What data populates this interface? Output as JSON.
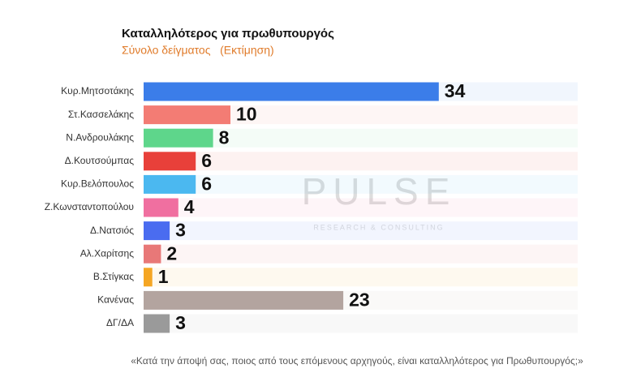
{
  "chart_data": {
    "type": "bar",
    "orientation": "horizontal",
    "title": "Καταλληλότερος για πρωθυπουργός",
    "subtitle": "Σύνολο δείγματος   (Εκτίμηση)",
    "footnote": "«Κατά την άποψή σας, ποιος από τους επόμενους αρχηγούς, είναι καταλληλότερος για Πρωθυπουργός;»",
    "watermark": "PULSE",
    "watermark_subtitle": "RESEARCH & CONSULTING",
    "categories": [
      "Κυρ.Μητσοτάκης",
      "Στ.Κασσελάκης",
      "Ν.Ανδρουλάκης",
      "Δ.Κουτσούμπας",
      "Κυρ.Βελόπουλος",
      "Ζ.Κωνσταντοπούλου",
      "Δ.Νατσιός",
      "Αλ.Χαρίτσης",
      "Β.Στίγκας",
      "Κανένας",
      "ΔΓ/ΔΑ"
    ],
    "values": [
      34,
      10,
      8,
      6,
      6,
      4,
      3,
      2,
      1,
      23,
      3
    ],
    "colors": [
      "#3b7de9",
      "#f37c74",
      "#5ed68b",
      "#e8403a",
      "#4bb8f0",
      "#f06fa0",
      "#4a6cf0",
      "#e87878",
      "#f5a623",
      "#b3a49f",
      "#9a9a9a"
    ],
    "xlim": [
      0,
      50
    ]
  }
}
